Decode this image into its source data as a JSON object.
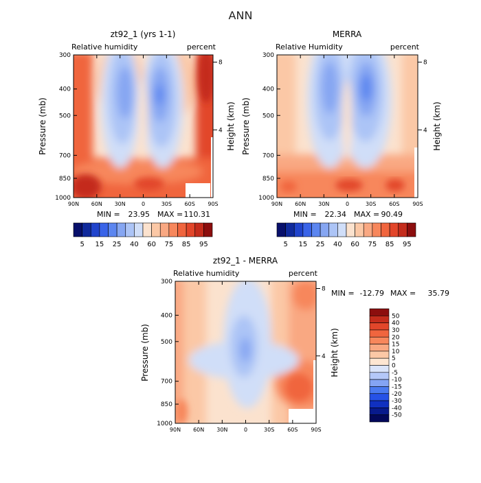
{
  "page_title": "ANN",
  "colors": {
    "cool": [
      "#08106b",
      "#102a9c",
      "#2044cc",
      "#3a64e8",
      "#5c86f0",
      "#86a6f2",
      "#acc4f6",
      "#d0def8"
    ],
    "warm": [
      "#fbe2ce",
      "#fbc8a6",
      "#f9a882",
      "#f7875c",
      "#f0653e",
      "#e2462a",
      "#c42c1c",
      "#8c0e0e"
    ]
  },
  "chart_data": [
    {
      "type": "heatmap",
      "title": "zt92_1 (yrs 1-1)",
      "variable": "Relative humidity",
      "units": "percent",
      "ylabel": "Pressure (mb)",
      "ylabel_right": "Height (km)",
      "x_ticks": [
        "90N",
        "60N",
        "30N",
        "0",
        "30S",
        "60S",
        "90S"
      ],
      "y_ticks": [
        "300",
        "400",
        "500",
        "700",
        "850",
        "1000"
      ],
      "y_ticks_right": [
        "8",
        "4"
      ],
      "ylim": [
        1000,
        300
      ],
      "stats": {
        "min_label": "MIN =",
        "min": "23.95",
        "max_label": "MAX =",
        "max": "110.31"
      },
      "colorbar_levels": [
        "5",
        "15",
        "25",
        "40",
        "60",
        "75",
        "85",
        "95"
      ]
    },
    {
      "type": "heatmap",
      "title": "MERRA",
      "variable": "Relative Humidity",
      "units": "percent",
      "ylabel": "Pressure (mb)",
      "ylabel_right": "Height (km)",
      "x_ticks": [
        "90N",
        "60N",
        "30N",
        "0",
        "30S",
        "60S",
        "90S"
      ],
      "y_ticks": [
        "300",
        "400",
        "500",
        "700",
        "850",
        "1000"
      ],
      "y_ticks_right": [
        "8",
        "4"
      ],
      "ylim": [
        1000,
        300
      ],
      "stats": {
        "min_label": "MIN =",
        "min": "22.34",
        "max_label": "MAX =",
        "max": "90.49"
      },
      "colorbar_levels": [
        "5",
        "15",
        "25",
        "40",
        "60",
        "75",
        "85",
        "95"
      ]
    },
    {
      "type": "heatmap",
      "title": "zt92_1 - MERRA",
      "variable": "Relative humidity",
      "units": "percent",
      "ylabel": "Pressure (mb)",
      "ylabel_right": "Height (km)",
      "x_ticks": [
        "90N",
        "60N",
        "30N",
        "0",
        "30S",
        "60S",
        "90S"
      ],
      "y_ticks": [
        "300",
        "400",
        "500",
        "700",
        "850",
        "1000"
      ],
      "y_ticks_right": [
        "8",
        "4"
      ],
      "ylim": [
        1000,
        300
      ],
      "stats": {
        "min_label": "MIN =",
        "min": "-12.79",
        "max_label": "MAX =",
        "max": "35.79"
      },
      "colorbar_levels": [
        "50",
        "40",
        "30",
        "20",
        "15",
        "10",
        "5",
        "0",
        "-5",
        "-10",
        "-15",
        "-20",
        "-30",
        "-40",
        "-50"
      ]
    }
  ]
}
